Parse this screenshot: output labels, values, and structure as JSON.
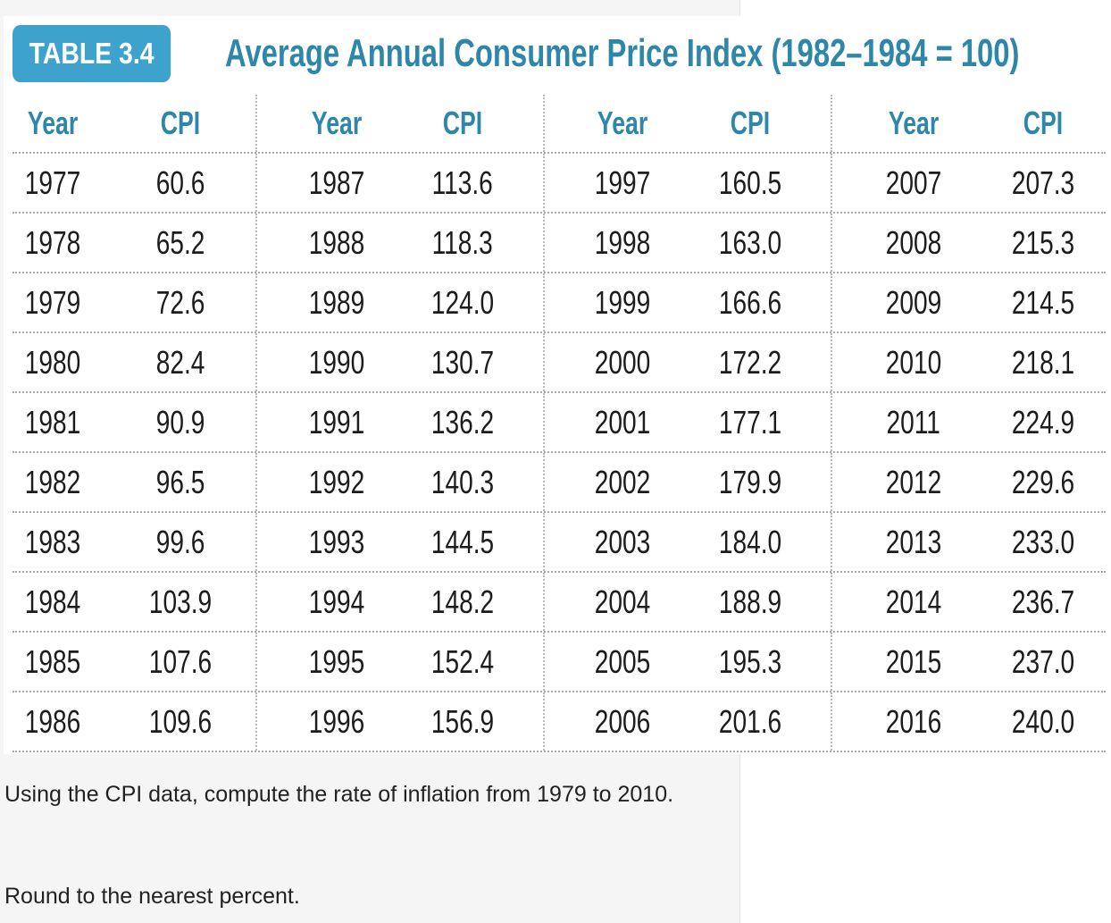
{
  "table": {
    "badge": "TABLE 3.4",
    "title": "Average Annual Consumer Price Index (1982–1984 = 100)",
    "headers": [
      "Year",
      "CPI",
      "Year",
      "CPI",
      "Year",
      "CPI",
      "Year",
      "CPI"
    ],
    "rows": [
      [
        "1977",
        "60.6",
        "1987",
        "113.6",
        "1997",
        "160.5",
        "2007",
        "207.3"
      ],
      [
        "1978",
        "65.2",
        "1988",
        "118.3",
        "1998",
        "163.0",
        "2008",
        "215.3"
      ],
      [
        "1979",
        "72.6",
        "1989",
        "124.0",
        "1999",
        "166.6",
        "2009",
        "214.5"
      ],
      [
        "1980",
        "82.4",
        "1990",
        "130.7",
        "2000",
        "172.2",
        "2010",
        "218.1"
      ],
      [
        "1981",
        "90.9",
        "1991",
        "136.2",
        "2001",
        "177.1",
        "2011",
        "224.9"
      ],
      [
        "1982",
        "96.5",
        "1992",
        "140.3",
        "2002",
        "179.9",
        "2012",
        "229.6"
      ],
      [
        "1983",
        "99.6",
        "1993",
        "144.5",
        "2003",
        "184.0",
        "2013",
        "233.0"
      ],
      [
        "1984",
        "103.9",
        "1994",
        "148.2",
        "2004",
        "188.9",
        "2014",
        "236.7"
      ],
      [
        "1985",
        "107.6",
        "1995",
        "152.4",
        "2005",
        "195.3",
        "2015",
        "237.0"
      ],
      [
        "1986",
        "109.6",
        "1996",
        "156.9",
        "2006",
        "201.6",
        "2016",
        "240.0"
      ]
    ]
  },
  "question": {
    "prompt": "Using the CPI data, compute the rate of inflation from 1979 to 2010.",
    "instruction": "Round to the nearest percent."
  },
  "colors": {
    "badge_bg": "#3ea3cc",
    "title_text": "#2e86a8",
    "panel_bg": "#f5f5f5"
  }
}
